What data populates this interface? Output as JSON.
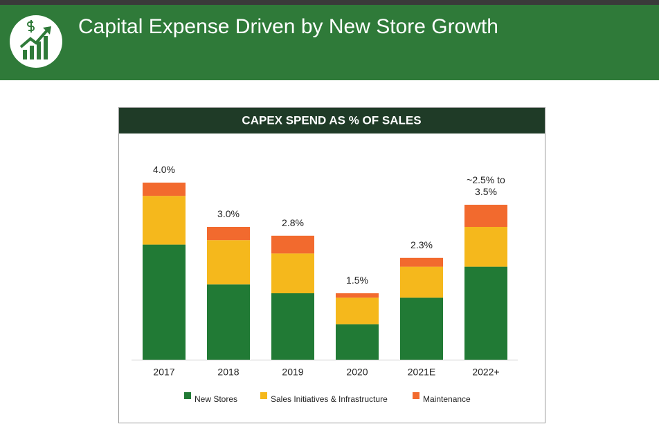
{
  "slide_title": "Capital Expense Driven by New Store Growth",
  "chart_data": {
    "type": "stacked_bar",
    "title": "CAPEX SPEND AS % OF SALES",
    "categories": [
      "2017",
      "2018",
      "2019",
      "2020",
      "2021E",
      "2022+"
    ],
    "series": [
      {
        "name": "New Stores",
        "color": "#217a35",
        "values": [
          2.6,
          1.7,
          1.5,
          0.8,
          1.4,
          2.1
        ]
      },
      {
        "name": "Sales Initiatives & Infrastructure",
        "color": "#f5b81c",
        "values": [
          1.1,
          1.0,
          0.9,
          0.6,
          0.7,
          0.9
        ]
      },
      {
        "name": "Maintenance",
        "color": "#f26a2e",
        "values": [
          0.3,
          0.3,
          0.4,
          0.1,
          0.2,
          0.5
        ]
      }
    ],
    "totals": [
      4.0,
      3.0,
      2.8,
      1.5,
      2.3,
      3.5
    ],
    "value_labels": [
      "4.0%",
      "3.0%",
      "2.8%",
      "1.5%",
      "2.3%",
      "~2.5% to 3.5%"
    ],
    "legend": "bottom"
  }
}
